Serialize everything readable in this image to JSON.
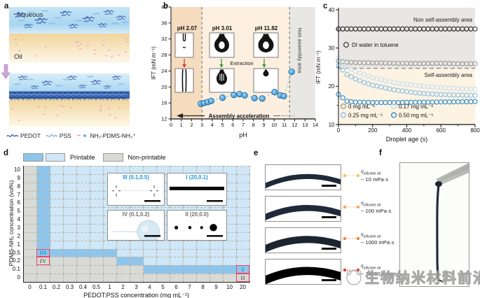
{
  "panel_a": {
    "label": "a",
    "aqueous": "Aqueous",
    "oil": "Oil",
    "legend": [
      {
        "name": "PEDOT",
        "glyph": "squiggle",
        "color": "#3a62ad"
      },
      {
        "name": "PSS",
        "glyph": "squiggle",
        "color": "#7ab5e0"
      },
      {
        "name": "NH₂-PDMS-NH₃⁺",
        "glyph": "dash-dot",
        "color": "#f08cbe",
        "color2": "#5aa7dc"
      }
    ]
  },
  "chart_data": [
    {
      "id": "b",
      "panel_label": "b",
      "type": "scatter",
      "xlabel": "pH",
      "ylabel": "IFT (mN m⁻¹)",
      "xlim": [
        0,
        14
      ],
      "ylim": [
        12,
        40
      ],
      "xticks": [
        0,
        1,
        2,
        3,
        4,
        5,
        6,
        7,
        8,
        9,
        10,
        11,
        12,
        13,
        14
      ],
      "yticks": [
        12,
        16,
        20,
        24,
        28,
        32,
        36,
        40
      ],
      "points": [
        [
          2.9,
          15.8
        ],
        [
          3.2,
          16.0
        ],
        [
          3.55,
          16.2
        ],
        [
          3.9,
          16.5
        ],
        [
          5.0,
          17.3
        ],
        [
          6.1,
          18.0
        ],
        [
          6.65,
          18.2
        ],
        [
          7.15,
          17.9
        ],
        [
          8.1,
          17.2
        ],
        [
          8.85,
          17.1
        ],
        [
          10.05,
          18.7
        ],
        [
          10.6,
          17.9
        ],
        [
          10.95,
          17.7
        ],
        [
          11.7,
          23.8
        ]
      ],
      "point_color": "#2e8fd0",
      "point_stroke": "#15639f",
      "trend_color": "#8ec9ee",
      "regions": [
        {
          "x0": 0,
          "x1": 3,
          "color": "#f6dcbf",
          "label": ""
        },
        {
          "x0": 3,
          "x1": 11.5,
          "color": "#fcefdf",
          "label": ""
        },
        {
          "x0": 11.5,
          "x1": 14,
          "color": "#e9e7e3",
          "label": "Non assembly area"
        }
      ],
      "dashed_x": [
        3,
        11.5
      ],
      "arrow_label": "Assembly acceleration",
      "extraction_label": "Extraction",
      "arrow_colors": {
        "red": "#d23b2f",
        "green": "#3a9a3a"
      },
      "insets": [
        {
          "ph": "pH 2.07",
          "arrow": "red"
        },
        {
          "ph": "pH 3.01",
          "arrow": "green"
        },
        {
          "ph": "pH 11.82",
          "arrow": "green"
        }
      ]
    },
    {
      "id": "c",
      "panel_label": "c",
      "type": "scatter",
      "xlabel": "Droplet age (s)",
      "ylabel": "IFT (mN m⁻¹)",
      "xlim": [
        0,
        800
      ],
      "ylim": [
        10,
        40
      ],
      "xticks": [
        0,
        200,
        400,
        600,
        800
      ],
      "yticks": [
        10,
        20,
        30,
        40
      ],
      "dashed_y": 24.7,
      "region_labels": {
        "top": "Non self-assembly area",
        "bottom": "Self-assembly area"
      },
      "region_colors": {
        "top": "#e9e7e3",
        "bottom": "#fdf3e3"
      },
      "di_label": "DI water in toluene",
      "x": [
        0,
        50,
        100,
        150,
        200,
        250,
        300,
        350,
        400,
        450,
        500,
        550,
        600,
        650,
        700,
        750,
        800
      ],
      "series": [
        {
          "name": "DI water in toluene",
          "color": "#3f3f3f",
          "values": [
            35,
            35,
            35,
            35,
            35,
            35,
            35,
            35,
            35,
            35,
            35,
            35,
            35,
            35,
            35,
            35,
            35
          ]
        },
        {
          "name": "0 mg mL⁻¹",
          "color": "#9b9b97",
          "values": [
            26.6,
            26.3,
            26.2,
            26.15,
            26.1,
            26.1,
            26.05,
            26.0,
            26.0,
            25.95,
            25.95,
            26.0,
            26.0,
            25.95,
            25.9,
            25.9,
            25.9
          ]
        },
        {
          "name": "0.17 mg mL⁻¹",
          "color": "#c9dff0",
          "values": [
            27.3,
            25.1,
            23.9,
            23.0,
            22.3,
            21.7,
            21.2,
            20.8,
            20.5,
            20.2,
            20.0,
            19.8,
            19.6,
            19.5,
            19.4,
            19.3,
            19.2
          ]
        },
        {
          "name": "0.25 mg mL⁻¹",
          "color": "#8cc2e5",
          "values": [
            25.4,
            23.1,
            21.9,
            21.0,
            20.3,
            19.8,
            19.3,
            18.9,
            18.6,
            18.3,
            18.1,
            17.95,
            17.85,
            17.75,
            17.7,
            17.65,
            17.6
          ]
        },
        {
          "name": "0.50 mg mL⁻¹",
          "color": "#2e8bcc",
          "values": [
            17.9,
            16.1,
            15.85,
            15.8,
            15.75,
            15.75,
            15.75,
            15.75,
            15.8,
            15.8,
            15.85,
            15.85,
            15.9,
            15.9,
            15.95,
            15.95,
            16.0
          ]
        }
      ]
    },
    {
      "id": "d",
      "panel_label": "d",
      "type": "heatmap",
      "xlabel": "PEDOT:PSS concentration (mg mL⁻¹)",
      "ylabel": "PDMS-NH₂ concentration (vol%)",
      "cols": [
        "0",
        "0.1",
        "0.2",
        "0.3",
        "0.4",
        "0.5",
        "1",
        "2",
        "3",
        "4",
        "5",
        "6",
        "7",
        "8",
        "9",
        "10",
        "20"
      ],
      "rows": [
        "10",
        "9",
        "8",
        "7",
        "6",
        "5",
        "4",
        "3",
        "2",
        "1",
        "0.5",
        "0.2",
        "0.1",
        "0"
      ],
      "cell_colors": {
        "0": "#d9d9d5",
        "1": "#cfe7f6",
        "2": "#8fc5ea"
      },
      "grid": [
        "02111111111111111",
        "02111111111111111",
        "02111111111111111",
        "02111111111111111",
        "02111111111111111",
        "02111111111111111",
        "02111111111111111",
        "02111111111111111",
        "02111111111111111",
        "02111111111111111",
        "02222221111111111",
        "00000002211111111",
        "00000000022222222",
        "00000000000000000"
      ],
      "legend": {
        "printable": "Printable",
        "non_printable": "Non-printable"
      },
      "markers": [
        {
          "label": "III",
          "col": 1,
          "row": 10,
          "color": "#2196d9"
        },
        {
          "label": "IV",
          "col": 1,
          "row": 11,
          "color": "#6f6f6f"
        },
        {
          "label": "I",
          "col": 16,
          "row": 12,
          "color": "#2196d9"
        },
        {
          "label": "II",
          "col": 16,
          "row": 13,
          "color": "#6f6f6f"
        }
      ],
      "insets": [
        {
          "label": "III (0.1,0.5)",
          "color": "#2196d9",
          "content": "filament-marks"
        },
        {
          "label": "I (20,0.1)",
          "color": "#2196d9",
          "content": "line"
        },
        {
          "label": "IV (0.1,0.2)",
          "color": "#6f6f6f",
          "content": "droplet"
        },
        {
          "label": "II (20,0.0)",
          "color": "#6f6f6f",
          "content": "dots"
        }
      ]
    }
  ],
  "panel_e": {
    "label": "e",
    "items": [
      {
        "symbol": "η",
        "subscript": "silicone oil",
        "value": "~ 10 mPa·s",
        "dot_color": "#f2c14e",
        "band_color": "#20293a",
        "band_width": 7
      },
      {
        "symbol": "η",
        "subscript": "silicone oil",
        "value": "~ 100 mPa·s",
        "dot_color": "#f4a94f",
        "band_color": "#20293a",
        "band_width": 8.5
      },
      {
        "symbol": "η",
        "subscript": "silicone oil",
        "value": "~ 1000 mPa·s",
        "dot_color": "#ee8438",
        "band_color": "#1c2430",
        "band_width": 10
      },
      {
        "symbol": "η",
        "subscript": "silicone oil",
        "value": "~ 10000 mPa·s",
        "dot_color": "#e03c2f",
        "band_color": "#000000",
        "band_width": 11.5
      }
    ]
  },
  "panel_f": {
    "label": "f"
  },
  "watermark": {
    "text": "生物纳米材料前沿"
  }
}
